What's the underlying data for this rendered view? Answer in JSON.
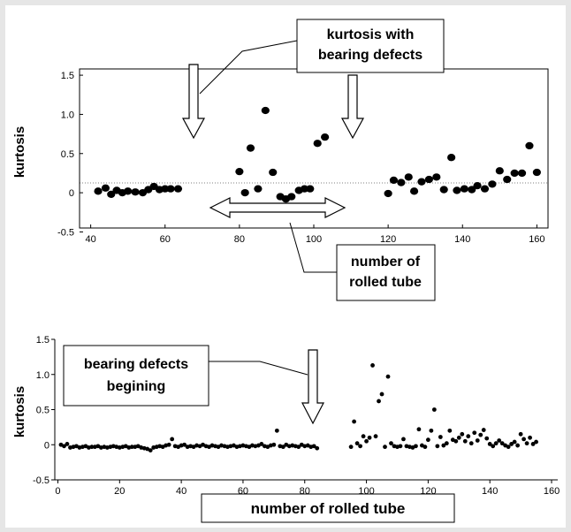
{
  "chart_data": [
    {
      "type": "scatter",
      "title": "",
      "xlabel": "",
      "ylabel": "kurtosis",
      "xlim": [
        37,
        163
      ],
      "ylim": [
        -0.5,
        1.5
      ],
      "xticks": [
        "40",
        "60",
        "80",
        "100",
        "120",
        "140",
        "160"
      ],
      "yticks": [
        "1.5",
        "1.0",
        "0.5",
        "0",
        "-0.5"
      ],
      "zero_line": "dotted",
      "series": [
        {
          "x": [
            42,
            44,
            45.5,
            47,
            48.5,
            50,
            52,
            54,
            55.5,
            57,
            58.5,
            60,
            61.5,
            63.5,
            80,
            81.5,
            83,
            85,
            87,
            89,
            91,
            92.5,
            94,
            96,
            97.5,
            99,
            101,
            103,
            120,
            121.5,
            123.5,
            125.5,
            127,
            129,
            131,
            133,
            135,
            137,
            138.5,
            140.5,
            142.5,
            144,
            146,
            148,
            150,
            152,
            154,
            156,
            158,
            160
          ],
          "y": [
            0.02,
            0.06,
            -0.02,
            0.03,
            0,
            0.02,
            0.01,
            0,
            0.04,
            0.08,
            0.04,
            0.05,
            0.05,
            0.05,
            0.27,
            0,
            0.57,
            0.05,
            1.05,
            0.26,
            -0.05,
            -0.08,
            -0.05,
            0.03,
            0.05,
            0.05,
            0.63,
            0.71,
            -0.01,
            0.16,
            0.13,
            0.2,
            0.02,
            0.14,
            0.17,
            0.2,
            0.04,
            0.45,
            0.03,
            0.05,
            0.04,
            0.09,
            0.05,
            0.11,
            0.28,
            0.17,
            0.25,
            0.25,
            0.6,
            0.26
          ]
        }
      ],
      "annotations": {
        "top_box": [
          "kurtosis with",
          "bearing  defects"
        ],
        "bottom_box": [
          "number of",
          "rolled tube"
        ]
      }
    },
    {
      "type": "scatter",
      "title": "",
      "xlabel": "number of rolled tube",
      "ylabel": "kurtosis",
      "xlim": [
        -1,
        162
      ],
      "ylim": [
        -0.5,
        1.5
      ],
      "xticks": [
        "0",
        "20",
        "40",
        "60",
        "80",
        "100",
        "120",
        "140",
        "160"
      ],
      "yticks": [
        "1.5",
        "1.0",
        "0.5",
        "0",
        "-0.5"
      ],
      "series": [
        {
          "x": [
            1,
            2,
            3,
            4,
            5,
            6,
            7,
            8,
            9,
            10,
            11,
            12,
            13,
            14,
            15,
            16,
            17,
            18,
            19,
            20,
            21,
            22,
            23,
            24,
            25,
            26,
            27,
            28,
            29,
            30,
            31,
            32,
            33,
            34,
            35,
            36,
            37,
            38,
            39,
            40,
            41,
            42,
            43,
            44,
            45,
            46,
            47,
            48,
            49,
            50,
            51,
            52,
            53,
            54,
            55,
            56,
            57,
            58,
            59,
            60,
            61,
            62,
            63,
            64,
            65,
            66,
            67,
            68,
            69,
            70,
            71,
            72,
            73,
            74,
            75,
            76,
            77,
            78,
            79,
            80,
            81,
            82,
            83,
            84,
            95,
            96,
            97,
            98,
            99,
            100,
            101,
            102,
            103,
            104,
            105,
            106,
            107,
            108,
            109,
            110,
            111,
            112,
            113,
            114,
            115,
            116,
            117,
            118,
            119,
            120,
            121,
            122,
            123,
            124,
            125,
            126,
            127,
            128,
            129,
            130,
            131,
            132,
            133,
            134,
            135,
            136,
            137,
            138,
            139,
            140,
            141,
            142,
            143,
            144,
            145,
            146,
            147,
            148,
            149,
            150,
            151,
            152,
            153,
            154,
            155
          ],
          "y": [
            0,
            -0.02,
            0.01,
            -0.04,
            -0.03,
            -0.02,
            -0.04,
            -0.03,
            -0.02,
            -0.04,
            -0.03,
            -0.03,
            -0.02,
            -0.04,
            -0.03,
            -0.04,
            -0.03,
            -0.02,
            -0.03,
            -0.04,
            -0.03,
            -0.02,
            -0.04,
            -0.03,
            -0.03,
            -0.02,
            -0.04,
            -0.05,
            -0.06,
            -0.08,
            -0.04,
            -0.03,
            -0.02,
            -0.03,
            -0.01,
            0,
            0.08,
            -0.02,
            -0.03,
            -0.01,
            0,
            -0.03,
            -0.02,
            -0.03,
            -0.01,
            -0.02,
            0,
            -0.02,
            -0.03,
            -0.01,
            -0.02,
            -0.03,
            -0.01,
            -0.02,
            -0.03,
            -0.02,
            -0.01,
            -0.03,
            -0.02,
            -0.01,
            -0.02,
            -0.03,
            -0.01,
            -0.02,
            -0.01,
            0.01,
            -0.02,
            -0.03,
            -0.01,
            0,
            0.2,
            -0.02,
            -0.03,
            0,
            -0.02,
            -0.01,
            -0.02,
            -0.03,
            0,
            -0.02,
            -0.01,
            -0.03,
            -0.02,
            -0.05,
            -0.03,
            0.33,
            0.02,
            -0.02,
            0.12,
            0.05,
            0.1,
            1.13,
            0.12,
            0.62,
            0.72,
            -0.03,
            0.97,
            0.02,
            -0.02,
            -0.03,
            -0.02,
            0.08,
            -0.02,
            -0.03,
            -0.04,
            -0.02,
            0.22,
            -0.01,
            -0.03,
            0.07,
            0.2,
            0.5,
            -0.02,
            0.11,
            -0.01,
            0.02,
            0.2,
            0.07,
            0.05,
            0.1,
            0.15,
            0.05,
            0.12,
            0.02,
            0.17,
            0.06,
            0.14,
            0.21,
            0.09,
            0.01,
            -0.02,
            0.02,
            0.06,
            0.02,
            -0.01,
            -0.03,
            0.01,
            0.04,
            -0.01,
            0.15,
            0.08,
            0.02,
            0.1,
            0.01,
            0.04
          ]
        }
      ],
      "annotations": {
        "top_box": [
          "bearing  defects",
          "begining"
        ]
      }
    }
  ]
}
